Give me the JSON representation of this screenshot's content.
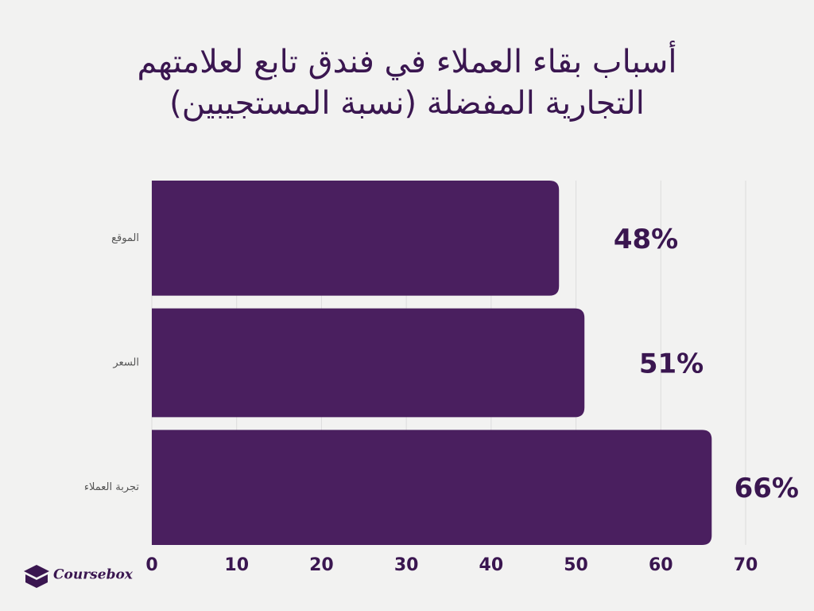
{
  "chart_data": {
    "type": "hbar",
    "title": "أسباب بقاء العملاء في فندق تابع لعلامتهم التجارية المفضلة (نسبة المستجيبين)",
    "categories": [
      "الموقع",
      "السعر",
      "تجربة العملاء"
    ],
    "values": [
      48,
      51,
      66
    ],
    "value_labels": [
      "48%",
      "51%",
      "66%"
    ],
    "color": "#4a1f5f",
    "xlim": [
      0,
      70
    ],
    "xticks": [
      0,
      10,
      20,
      30,
      40,
      50,
      60,
      70
    ],
    "grid": true
  },
  "brand": "Coursebox"
}
